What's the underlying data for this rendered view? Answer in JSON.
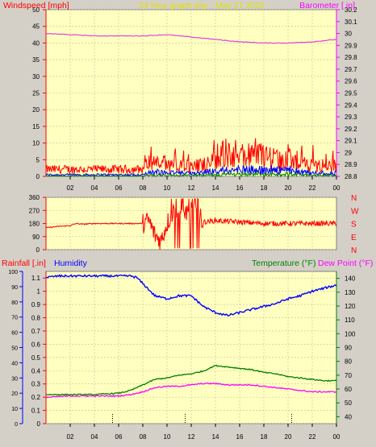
{
  "header": {
    "left_title": "Windspeed [mph]",
    "center_title": "24 hour graph day - May 21 2024",
    "right_title": "Barometer [ in]"
  },
  "bottom_header": {
    "rainfall_label": "Rainfall [.in]",
    "humidity_label": "Humidity",
    "temperature_label": "Temperature (°F)",
    "dewpoint_label": "Dew Point (°F)"
  },
  "colors": {
    "plot_bg": "#ffffc0",
    "frame_bg": "#d4d0c8",
    "axis_red": "#ff0000",
    "axis_magenta": "#ff00ff",
    "wind_red": "#ff0000",
    "wind_blue": "#0000ff",
    "wind_green": "#008000",
    "barometer": "#e040e0",
    "humidity": "#0000ff",
    "temperature": "#008000",
    "dewpoint": "#ff00ff",
    "direction": "#ff0000"
  },
  "chart_data": [
    {
      "type": "line",
      "name": "wind-barometer",
      "x_ticks": [
        "02",
        "04",
        "06",
        "08",
        "10",
        "12",
        "14",
        "16",
        "18",
        "20",
        "22",
        "00"
      ],
      "xlim": [
        0,
        24
      ],
      "y_left": {
        "ticks": [
          "0",
          "5",
          "10",
          "15",
          "20",
          "25",
          "30",
          "35",
          "40",
          "45",
          "50"
        ],
        "ylim": [
          0,
          50
        ]
      },
      "y_right": {
        "ticks": [
          "28.8",
          "28.9",
          "29",
          "29.1",
          "29.2",
          "29.3",
          "29.4",
          "29.5",
          "29.6",
          "29.7",
          "29.8",
          "29.9",
          "30",
          "30.1",
          "30.2"
        ],
        "ylim": [
          28.8,
          30.2
        ]
      },
      "barometer": {
        "x": [
          0,
          2,
          4,
          6,
          8,
          10,
          12,
          14,
          16,
          18,
          20,
          22,
          24
        ],
        "y": [
          30.0,
          29.99,
          29.98,
          29.98,
          29.98,
          29.99,
          29.97,
          29.95,
          29.93,
          29.92,
          29.92,
          29.93,
          29.95
        ]
      },
      "wind_gust_profile": {
        "x": [
          0,
          4,
          8,
          8.5,
          10,
          12,
          13.5,
          14.5,
          16,
          18,
          19,
          20,
          21,
          22,
          24
        ],
        "y": [
          2,
          2,
          2,
          4,
          3,
          3,
          4,
          6,
          6,
          6,
          5,
          5,
          4,
          3,
          3
        ]
      },
      "wind_avg_profile": {
        "x": [
          0,
          8,
          9,
          10,
          12,
          14,
          16,
          18,
          20,
          22,
          24
        ],
        "y": [
          0.5,
          0.5,
          1.5,
          1,
          1,
          1.5,
          2,
          2,
          2,
          1,
          1
        ]
      }
    },
    {
      "type": "line",
      "name": "wind-direction",
      "x_ticks": [],
      "xlim": [
        0,
        24
      ],
      "y_left": {
        "ticks": [
          "0",
          "90",
          "180",
          "270",
          "360"
        ],
        "ylim": [
          0,
          360
        ]
      },
      "y_right": {
        "ticks": [
          "N",
          "E",
          "S",
          "W",
          "N"
        ]
      },
      "direction_profile": {
        "x": [
          0,
          1,
          2,
          2.5,
          3,
          4,
          6,
          7,
          8,
          8.5,
          9,
          9.5,
          10,
          10.5,
          11,
          12,
          13,
          14,
          16,
          18,
          20,
          22,
          24
        ],
        "y": [
          150,
          160,
          165,
          180,
          175,
          180,
          180,
          180,
          180,
          200,
          100,
          60,
          180,
          260,
          200,
          300,
          190,
          200,
          190,
          180,
          180,
          180,
          180
        ]
      }
    },
    {
      "type": "line",
      "name": "rain-humidity-temperature",
      "x_ticks": [
        "02",
        "04",
        "06",
        "08",
        "10",
        "12",
        "14",
        "16",
        "18",
        "20",
        "22",
        "00"
      ],
      "xlim": [
        0,
        24
      ],
      "y_left": {
        "ticks": [
          "0",
          "0.1",
          "0.2",
          "0.3",
          "0.4",
          "0.5",
          "0.6",
          "0.7",
          "0.8",
          "0.9",
          "1",
          "1.1"
        ],
        "ylim": [
          0,
          1.15
        ]
      },
      "y_humidity": {
        "ticks": [
          "0",
          "10",
          "20",
          "30",
          "40",
          "50",
          "60",
          "70",
          "80",
          "90",
          "100"
        ],
        "ylim": [
          0,
          100
        ]
      },
      "y_right": {
        "ticks": [
          "40",
          "50",
          "60",
          "70",
          "80",
          "90",
          "100",
          "110",
          "120",
          "130",
          "140"
        ],
        "ylim": [
          35,
          145
        ]
      },
      "humidity": {
        "x": [
          0,
          1,
          2,
          4,
          6,
          7,
          7.5,
          8,
          8.5,
          9,
          10,
          11,
          12,
          13,
          14,
          15,
          16,
          17,
          18,
          19,
          20,
          21,
          22,
          23,
          24
        ],
        "y": [
          96,
          97,
          97,
          97,
          97,
          97,
          96,
          92,
          88,
          84,
          82,
          84,
          84,
          77,
          73,
          71,
          73,
          75,
          77,
          79,
          82,
          84,
          87,
          89,
          91
        ]
      },
      "temperature": {
        "x": [
          0,
          2,
          4,
          6,
          7,
          8,
          9,
          10,
          11,
          12,
          13,
          14,
          15,
          16,
          17,
          18,
          19,
          20,
          21,
          22,
          23,
          24
        ],
        "y": [
          56,
          56,
          56,
          57,
          59,
          63,
          67,
          68,
          70,
          71,
          73,
          77,
          76,
          75,
          74,
          72,
          71,
          69,
          68,
          67,
          66,
          66
        ]
      },
      "dewpoint": {
        "x": [
          0,
          2,
          4,
          6,
          7,
          8,
          9,
          10,
          11,
          12,
          13,
          14,
          15,
          16,
          17,
          18,
          19,
          20,
          21,
          22,
          23,
          24
        ],
        "y": [
          54,
          55,
          55,
          55,
          56,
          58,
          61,
          62,
          62,
          63,
          64,
          64,
          63,
          63,
          63,
          62,
          61,
          60,
          59,
          58,
          58,
          58
        ]
      },
      "rain_markers_x": [
        5.5,
        11.5,
        20.3
      ]
    }
  ]
}
